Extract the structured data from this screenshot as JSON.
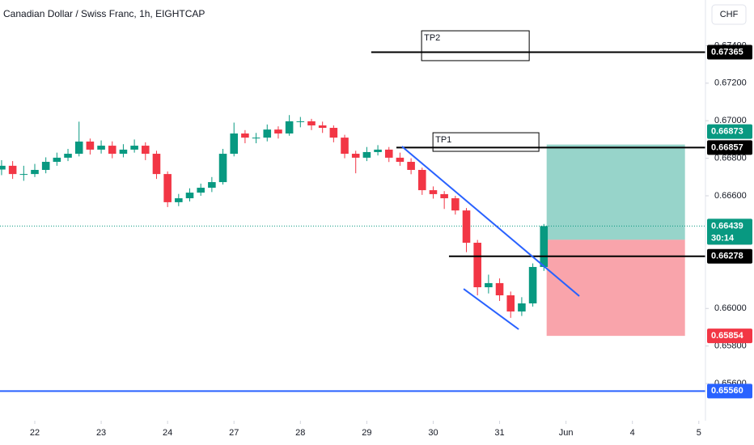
{
  "chart_data": {
    "type": "candlestick",
    "title": "Canadian Dollar / Swiss Franc, 1h, EIGHTCAP",
    "currency_button": "CHF",
    "up_color": "#089981",
    "down_color": "#f23645",
    "xlim": [
      -12.57,
      242.4
    ],
    "ylim": [
      0.65402,
      0.67643
    ],
    "grid": false,
    "xticks": [
      {
        "value": 0,
        "label": "22"
      },
      {
        "value": 24,
        "label": "23"
      },
      {
        "value": 48,
        "label": "24"
      },
      {
        "value": 72,
        "label": "27"
      },
      {
        "value": 96,
        "label": "28"
      },
      {
        "value": 120,
        "label": "29"
      },
      {
        "value": 144,
        "label": "30"
      },
      {
        "value": 168,
        "label": "31"
      },
      {
        "value": 192,
        "label": "Jun"
      },
      {
        "value": 216,
        "label": "4"
      },
      {
        "value": 240,
        "label": "5"
      }
    ],
    "yticks": [
      {
        "value": 0.674,
        "label": "0.67400"
      },
      {
        "value": 0.672,
        "label": "0.67200"
      },
      {
        "value": 0.67,
        "label": "0.67000"
      },
      {
        "value": 0.668,
        "label": "0.66800"
      },
      {
        "value": 0.666,
        "label": "0.66600"
      },
      {
        "value": 0.66,
        "label": "0.66000"
      },
      {
        "value": 0.658,
        "label": "0.65800"
      },
      {
        "value": 0.656,
        "label": "0.65600"
      }
    ],
    "x": [
      -12,
      -8,
      -4,
      0,
      4,
      8,
      12,
      16,
      20,
      24,
      28,
      32,
      36,
      40,
      44,
      48,
      52,
      56,
      60,
      64,
      68,
      72,
      76,
      80,
      84,
      88,
      92,
      96,
      100,
      104,
      108,
      112,
      116,
      120,
      124,
      128,
      132,
      136,
      140,
      144,
      148,
      152,
      156,
      160,
      164,
      168,
      172,
      176,
      180,
      184
    ],
    "open": [
      0.6674,
      0.6676,
      0.66716,
      0.66716,
      0.66738,
      0.66781,
      0.66803,
      0.66824,
      0.66889,
      0.66846,
      0.66867,
      0.66824,
      0.66846,
      0.66867,
      0.66824,
      0.66716,
      0.66566,
      0.66587,
      0.66617,
      0.66643,
      0.66673,
      0.66824,
      0.66932,
      0.6691,
      0.6691,
      0.66953,
      0.66932,
      0.66997,
      0.66997,
      0.66975,
      0.66962,
      0.6691,
      0.66824,
      0.66803,
      0.66833,
      0.66846,
      0.66803,
      0.66781,
      0.66738,
      0.6663,
      0.66609,
      0.66587,
      0.66522,
      0.6635,
      0.66113,
      0.66135,
      0.6607,
      0.65984,
      0.66027,
      0.66221
    ],
    "high": [
      0.6679,
      0.66785,
      0.6676,
      0.6677,
      0.66805,
      0.6683,
      0.6685,
      0.66995,
      0.66905,
      0.66895,
      0.6689,
      0.66875,
      0.669,
      0.66885,
      0.6684,
      0.6673,
      0.6661,
      0.6664,
      0.66665,
      0.667,
      0.6685,
      0.6699,
      0.6695,
      0.66935,
      0.6698,
      0.6697,
      0.6703,
      0.6702,
      0.6701,
      0.66995,
      0.66975,
      0.66925,
      0.6684,
      0.6686,
      0.6687,
      0.6686,
      0.6683,
      0.668,
      0.6675,
      0.6665,
      0.66625,
      0.666,
      0.66535,
      0.66365,
      0.6618,
      0.6616,
      0.6609,
      0.6606,
      0.6624,
      0.6645
    ],
    "low": [
      0.6671,
      0.6669,
      0.6668,
      0.667,
      0.6672,
      0.6676,
      0.66785,
      0.6681,
      0.6682,
      0.66825,
      0.668,
      0.66805,
      0.6683,
      0.6679,
      0.6669,
      0.6654,
      0.66545,
      0.6657,
      0.666,
      0.6662,
      0.6666,
      0.6681,
      0.6688,
      0.6688,
      0.6689,
      0.66905,
      0.6692,
      0.66965,
      0.6695,
      0.66935,
      0.66885,
      0.668,
      0.6672,
      0.66785,
      0.66815,
      0.6678,
      0.6676,
      0.66715,
      0.66605,
      0.66585,
      0.6653,
      0.665,
      0.663,
      0.6607,
      0.6608,
      0.6604,
      0.6595,
      0.6596,
      0.6601,
      0.662
    ],
    "close": [
      0.6676,
      0.66716,
      0.66716,
      0.66738,
      0.66781,
      0.66803,
      0.66824,
      0.66889,
      0.66846,
      0.66867,
      0.66824,
      0.66846,
      0.66867,
      0.66824,
      0.66716,
      0.66566,
      0.66587,
      0.66617,
      0.66643,
      0.66673,
      0.66824,
      0.66932,
      0.6691,
      0.6691,
      0.66953,
      0.66932,
      0.66997,
      0.66997,
      0.66975,
      0.66962,
      0.6691,
      0.66824,
      0.66803,
      0.66833,
      0.66846,
      0.66803,
      0.66781,
      0.66738,
      0.6663,
      0.66609,
      0.66587,
      0.66522,
      0.6635,
      0.66113,
      0.66135,
      0.6607,
      0.65984,
      0.66027,
      0.66221,
      0.66439
    ],
    "hlines": [
      {
        "value": 0.67365,
        "label": "0.67365",
        "color": "#000000",
        "x_start": 121.6
      },
      {
        "value": 0.66857,
        "label": "0.66857",
        "color": "#000000",
        "x_start": 130.7
      },
      {
        "value": 0.66278,
        "label": "0.66278",
        "color": "#000000",
        "x_start": 149.7
      },
      {
        "value": 0.6556,
        "label": "0.65560",
        "color": "#2962ff",
        "x_start": -12.57
      }
    ],
    "text_boxes": [
      {
        "text": "TP2",
        "x": [
          139.8,
          178.7
        ],
        "y": [
          0.67479,
          0.6732
        ]
      },
      {
        "text": "TP1",
        "x": [
          143.9,
          182.2
        ],
        "y": [
          0.66936,
          0.66837
        ]
      }
    ],
    "trend_lines": [
      {
        "color": "#2962ff",
        "x": [
          132.7,
          196.8
        ],
        "y": [
          0.66863,
          0.66066
        ]
      },
      {
        "color": "#2962ff",
        "x": [
          155,
          174.9
        ],
        "y": [
          0.66104,
          0.65889
        ]
      }
    ],
    "position": {
      "x": [
        185,
        235
      ],
      "target": 0.66873,
      "entry": 0.66366,
      "stop": 0.65854,
      "target_color": "#089981",
      "entry_color": "#787b86",
      "stop_color": "#f23645"
    },
    "last_price": {
      "value": 0.66439,
      "label": "0.66439",
      "countdown": "30:14",
      "color": "#089981"
    }
  }
}
